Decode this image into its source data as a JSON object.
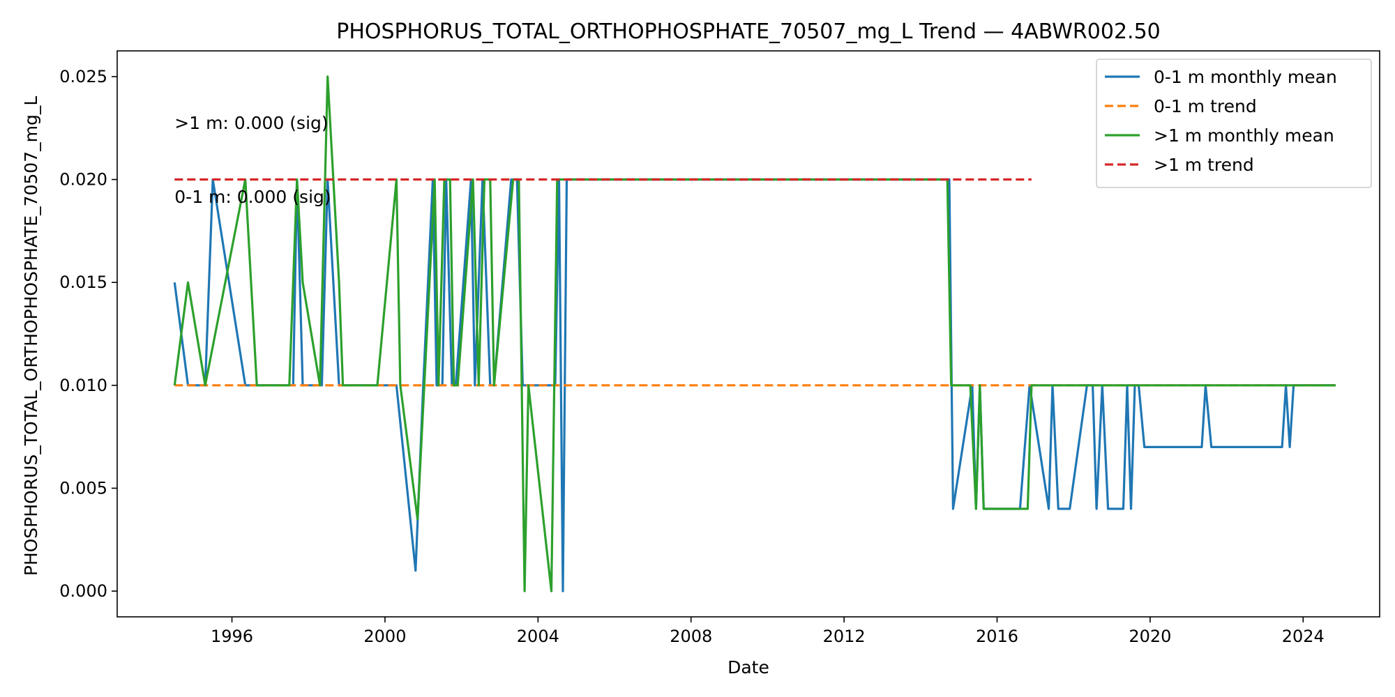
{
  "chart_data": {
    "type": "line",
    "title": "PHOSPHORUS_TOTAL_ORTHOPHOSPHATE_70507_mg_L Trend — 4ABWR002.50",
    "xlabel": "Date",
    "ylabel": "PHOSPHORUS_TOTAL_ORTHOPHOSPHATE_70507_mg_L",
    "xlim": [
      1993.0,
      2026.0
    ],
    "ylim": [
      -0.00125,
      0.02625
    ],
    "x_ticks": [
      "1996",
      "2000",
      "2004",
      "2008",
      "2012",
      "2016",
      "2020",
      "2024"
    ],
    "y_ticks": [
      "0.000",
      "0.005",
      "0.010",
      "0.015",
      "0.020",
      "0.025"
    ],
    "grid": false,
    "legend_position": "top-right",
    "annotations": [
      {
        "text": ">1 m: 0.000 (sig)",
        "x": 1994.5,
        "y": 0.0228
      },
      {
        "text": "0-1 m: 0.000 (sig)",
        "x": 1994.5,
        "y": 0.0192
      }
    ],
    "series": [
      {
        "name": "0-1 m monthly mean",
        "color": "#1f77b4",
        "style": "solid",
        "x": [
          1994.5,
          1994.85,
          1995.3,
          1995.5,
          1996.35,
          1996.7,
          1997.6,
          1997.7,
          1997.85,
          1998.35,
          1998.5,
          1998.8,
          1999.0,
          1999.8,
          2000.3,
          2000.8,
          2001.0,
          2001.25,
          2001.35,
          2001.5,
          2001.6,
          2001.75,
          2001.85,
          2002.25,
          2002.35,
          2002.55,
          2002.75,
          2002.85,
          2003.3,
          2003.45,
          2003.6,
          2003.7,
          2004.35,
          2004.45,
          2004.55,
          2004.65,
          2004.75,
          2014.75,
          2014.85,
          2015.35,
          2015.45,
          2015.55,
          2015.65,
          2015.75,
          2016.6,
          2016.85,
          2017.35,
          2017.45,
          2017.6,
          2017.9,
          2018.35,
          2018.5,
          2018.6,
          2018.75,
          2018.9,
          2019.3,
          2019.4,
          2019.5,
          2019.6,
          2019.7,
          2019.85,
          2021.35,
          2021.45,
          2021.6,
          2023.45,
          2023.55,
          2023.65,
          2023.75,
          2024.6,
          2024.85
        ],
        "y": [
          0.015,
          0.01,
          0.01,
          0.02,
          0.01,
          0.01,
          0.01,
          0.02,
          0.01,
          0.01,
          0.02,
          0.01,
          0.01,
          0.01,
          0.01,
          0.001,
          0.01,
          0.02,
          0.01,
          0.01,
          0.02,
          0.01,
          0.01,
          0.02,
          0.01,
          0.02,
          0.01,
          0.01,
          0.02,
          0.02,
          0.01,
          0.01,
          0.01,
          0.01,
          0.02,
          0.0,
          0.02,
          0.02,
          0.004,
          0.01,
          0.004,
          0.01,
          0.004,
          0.004,
          0.004,
          0.01,
          0.004,
          0.01,
          0.004,
          0.004,
          0.01,
          0.01,
          0.004,
          0.01,
          0.004,
          0.004,
          0.01,
          0.004,
          0.01,
          0.01,
          0.007,
          0.007,
          0.01,
          0.007,
          0.007,
          0.01,
          0.007,
          0.01,
          0.01,
          0.01
        ]
      },
      {
        "name": "0-1 m trend",
        "color": "#ff7f0e",
        "style": "dashed",
        "x": [
          1994.5,
          2024.85
        ],
        "y": [
          0.01,
          0.01
        ]
      },
      {
        "name": ">1 m monthly mean",
        "color": "#2ca02c",
        "style": "solid",
        "x": [
          1994.5,
          1994.85,
          1995.3,
          1996.35,
          1996.65,
          1997.5,
          1997.7,
          1997.85,
          1998.3,
          1998.5,
          1998.8,
          1998.9,
          1999.8,
          2000.3,
          2000.4,
          2000.85,
          2001.3,
          2001.4,
          2001.55,
          2001.7,
          2001.8,
          2001.9,
          2002.3,
          2002.45,
          2002.6,
          2002.75,
          2002.85,
          2003.35,
          2003.5,
          2003.65,
          2003.75,
          2004.35,
          2004.5,
          2004.65,
          2014.7,
          2014.8,
          2015.3,
          2015.45,
          2015.55,
          2015.65,
          2016.8,
          2016.9,
          2024.85
        ],
        "y": [
          0.01,
          0.015,
          0.01,
          0.02,
          0.01,
          0.01,
          0.02,
          0.015,
          0.01,
          0.025,
          0.015,
          0.01,
          0.01,
          0.02,
          0.01,
          0.0035,
          0.02,
          0.01,
          0.02,
          0.02,
          0.01,
          0.01,
          0.02,
          0.01,
          0.02,
          0.02,
          0.01,
          0.02,
          0.02,
          0.0,
          0.01,
          0.0,
          0.02,
          0.02,
          0.02,
          0.01,
          0.01,
          0.004,
          0.01,
          0.004,
          0.004,
          0.01,
          0.01
        ]
      },
      {
        "name": ">1 m trend",
        "color": "#d62728",
        "style": "dashed",
        "x": [
          1994.5,
          2016.9
        ],
        "y": [
          0.02,
          0.02
        ]
      }
    ]
  }
}
